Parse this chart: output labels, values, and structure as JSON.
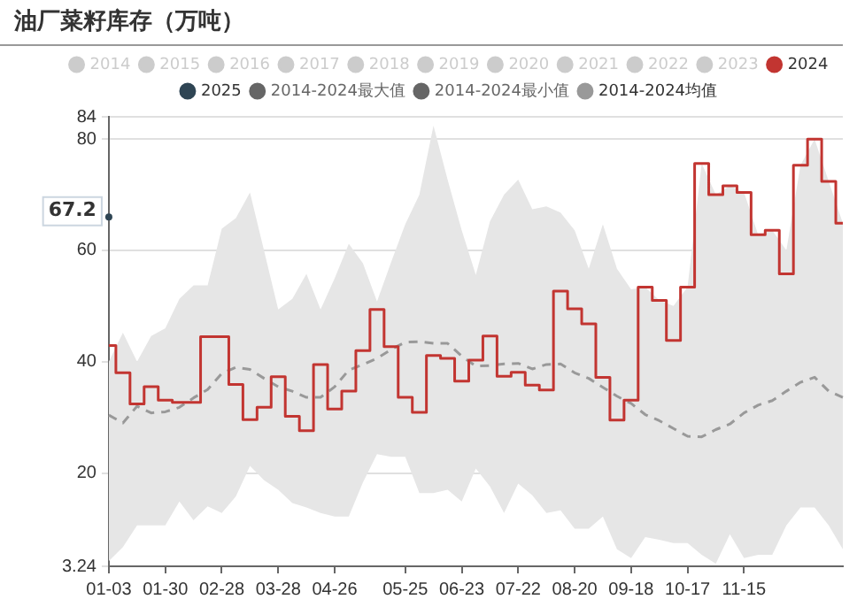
{
  "chart_data": {
    "type": "step",
    "title": "油厂菜籽库存（万吨）",
    "categories": [
      "01-03",
      null,
      null,
      null,
      "01-30",
      null,
      null,
      null,
      "02-28",
      null,
      null,
      null,
      "03-28",
      null,
      null,
      null,
      "04-26",
      null,
      null,
      null,
      null,
      "05-25",
      null,
      null,
      null,
      "06-23",
      null,
      null,
      null,
      "07-22",
      null,
      null,
      null,
      "08-20",
      null,
      null,
      null,
      "09-18",
      null,
      null,
      null,
      "10-17",
      null,
      null,
      null,
      "11-15",
      null,
      null,
      null,
      null,
      null,
      null,
      null
    ],
    "series": [
      {
        "name": "2014",
        "color": "#cccccc",
        "values": [
          null,
          null,
          null,
          null,
          null,
          null,
          null,
          null,
          null,
          null,
          null,
          null,
          null,
          null,
          null,
          null,
          null,
          null,
          null,
          null,
          null,
          null,
          null,
          null,
          null,
          null,
          null,
          null,
          null,
          null,
          null,
          null,
          null,
          null,
          null,
          null,
          null,
          null,
          null,
          null,
          null,
          null,
          null,
          null,
          null,
          null,
          null,
          null,
          null,
          null,
          null,
          null,
          null
        ]
      },
      {
        "name": "2015",
        "color": "#cccccc",
        "values": [
          null,
          null,
          null,
          null,
          null,
          null,
          null,
          null,
          null,
          null,
          null,
          null,
          null,
          null,
          null,
          null,
          null,
          null,
          null,
          null,
          null,
          null,
          null,
          null,
          null,
          null,
          null,
          null,
          null,
          null,
          null,
          null,
          null,
          null,
          null,
          null,
          null,
          null,
          null,
          null,
          null,
          null,
          null,
          null,
          null,
          null,
          null,
          null,
          null,
          null,
          null,
          null,
          null
        ]
      },
      {
        "name": "2016",
        "color": "#cccccc",
        "values": [
          null,
          null,
          null,
          null,
          null,
          null,
          null,
          null,
          null,
          null,
          null,
          null,
          null,
          null,
          null,
          null,
          null,
          null,
          null,
          null,
          null,
          null,
          null,
          null,
          null,
          null,
          null,
          null,
          null,
          null,
          null,
          null,
          null,
          null,
          null,
          null,
          null,
          null,
          null,
          null,
          null,
          null,
          null,
          null,
          null,
          null,
          null,
          null,
          null,
          null,
          null,
          null,
          null
        ]
      },
      {
        "name": "2017",
        "color": "#cccccc",
        "values": [
          null,
          null,
          null,
          null,
          null,
          null,
          null,
          null,
          null,
          null,
          null,
          null,
          null,
          null,
          null,
          null,
          null,
          null,
          null,
          null,
          null,
          null,
          null,
          null,
          null,
          null,
          null,
          null,
          null,
          null,
          null,
          null,
          null,
          null,
          null,
          null,
          null,
          null,
          null,
          null,
          null,
          null,
          null,
          null,
          null,
          null,
          null,
          null,
          null,
          null,
          null,
          null,
          null
        ]
      },
      {
        "name": "2018",
        "color": "#cccccc",
        "values": [
          null,
          null,
          null,
          null,
          null,
          null,
          null,
          null,
          null,
          null,
          null,
          null,
          null,
          null,
          null,
          null,
          null,
          null,
          null,
          null,
          null,
          null,
          null,
          null,
          null,
          null,
          null,
          null,
          null,
          null,
          null,
          null,
          null,
          null,
          null,
          null,
          null,
          null,
          null,
          null,
          null,
          null,
          null,
          null,
          null,
          null,
          null,
          null,
          null,
          null,
          null,
          null,
          null
        ]
      },
      {
        "name": "2019",
        "color": "#cccccc",
        "values": [
          null,
          null,
          null,
          null,
          null,
          null,
          null,
          null,
          null,
          null,
          null,
          null,
          null,
          null,
          null,
          null,
          null,
          null,
          null,
          null,
          null,
          null,
          null,
          null,
          null,
          null,
          null,
          null,
          null,
          null,
          null,
          null,
          null,
          null,
          null,
          null,
          null,
          null,
          null,
          null,
          null,
          null,
          null,
          null,
          null,
          null,
          null,
          null,
          null,
          null,
          null,
          null,
          null
        ]
      },
      {
        "name": "2020",
        "color": "#cccccc",
        "values": [
          null,
          null,
          null,
          null,
          null,
          null,
          null,
          null,
          null,
          null,
          null,
          null,
          null,
          null,
          null,
          null,
          null,
          null,
          null,
          null,
          null,
          null,
          null,
          null,
          null,
          null,
          null,
          null,
          null,
          null,
          null,
          null,
          null,
          null,
          null,
          null,
          null,
          null,
          null,
          null,
          null,
          null,
          null,
          null,
          null,
          null,
          null,
          null,
          null,
          null,
          null,
          null,
          null
        ]
      },
      {
        "name": "2021",
        "color": "#cccccc",
        "values": [
          null,
          null,
          null,
          null,
          null,
          null,
          null,
          null,
          null,
          null,
          null,
          null,
          null,
          null,
          null,
          null,
          null,
          null,
          null,
          null,
          null,
          null,
          null,
          null,
          null,
          null,
          null,
          null,
          null,
          null,
          null,
          null,
          null,
          null,
          null,
          null,
          null,
          null,
          null,
          null,
          null,
          null,
          null,
          null,
          null,
          null,
          null,
          null,
          null,
          null,
          null,
          null,
          null
        ]
      },
      {
        "name": "2022",
        "color": "#cccccc",
        "values": [
          null,
          null,
          null,
          null,
          null,
          null,
          null,
          null,
          null,
          null,
          null,
          null,
          null,
          null,
          null,
          null,
          null,
          null,
          null,
          null,
          null,
          null,
          null,
          null,
          null,
          null,
          null,
          null,
          null,
          null,
          null,
          null,
          null,
          null,
          null,
          null,
          null,
          null,
          null,
          null,
          null,
          null,
          null,
          null,
          null,
          null,
          null,
          null,
          null,
          null,
          null,
          null,
          null
        ]
      },
      {
        "name": "2023",
        "color": "#cccccc",
        "values": [
          null,
          null,
          null,
          null,
          null,
          null,
          null,
          null,
          null,
          null,
          null,
          null,
          null,
          null,
          null,
          null,
          null,
          null,
          null,
          null,
          null,
          null,
          null,
          null,
          null,
          null,
          null,
          null,
          null,
          null,
          null,
          null,
          null,
          null,
          null,
          null,
          null,
          null,
          null,
          null,
          null,
          null,
          null,
          null,
          null,
          null,
          null,
          null,
          null,
          null,
          null,
          null,
          null
        ]
      },
      {
        "name": "2024",
        "color": "#c23531",
        "values": [
          42.9,
          38,
          32.4,
          35.5,
          33.1,
          32.7,
          32.7,
          44.5,
          44.5,
          35.9,
          29.6,
          31.8,
          37.3,
          30.2,
          27.6,
          39.5,
          31.5,
          34.7,
          42,
          49.4,
          42.7,
          33.6,
          30.9,
          41.1,
          40.6,
          36.5,
          40.3,
          44.6,
          37.4,
          38.1,
          35.8,
          34.9,
          52.7,
          49.5,
          46.8,
          37.2,
          29.5,
          33.1,
          53.4,
          51,
          43.8,
          53.4,
          75.6,
          70,
          71.6,
          70.4,
          62.8,
          63.6,
          55.8,
          75.3,
          80,
          72.4,
          64.9
        ]
      },
      {
        "name": "2025",
        "color": "#2f4554",
        "marker": "circle",
        "values": [
          66,
          null,
          null,
          null,
          null,
          null,
          null,
          null,
          null,
          null,
          null,
          null,
          null,
          null,
          null,
          null,
          null,
          null,
          null,
          null,
          null,
          null,
          null,
          null,
          null,
          null,
          null,
          null,
          null,
          null,
          null,
          null,
          null,
          null,
          null,
          null,
          null,
          null,
          null,
          null,
          null,
          null,
          null,
          null,
          null,
          null,
          null,
          null,
          null,
          null,
          null,
          null,
          null
        ]
      },
      {
        "name": "2014-2024最大值",
        "color": "#666666",
        "values": [
          null,
          null,
          null,
          null,
          null,
          null,
          null,
          null,
          null,
          null,
          null,
          null,
          null,
          null,
          null,
          null,
          null,
          null,
          null,
          null,
          null,
          null,
          null,
          null,
          null,
          null,
          null,
          null,
          null,
          null,
          null,
          null,
          null,
          null,
          null,
          null,
          null,
          null,
          null,
          null,
          null,
          null,
          null,
          null,
          null,
          null,
          null,
          null,
          null,
          null,
          null,
          null,
          null
        ]
      },
      {
        "name": "2014-2024最小值",
        "color": "#666666",
        "values": [
          null,
          null,
          null,
          null,
          null,
          null,
          null,
          null,
          null,
          null,
          null,
          null,
          null,
          null,
          null,
          null,
          null,
          null,
          null,
          null,
          null,
          null,
          null,
          null,
          null,
          null,
          null,
          null,
          null,
          null,
          null,
          null,
          null,
          null,
          null,
          null,
          null,
          null,
          null,
          null,
          null,
          null,
          null,
          null,
          null,
          null,
          null,
          null,
          null,
          null,
          null,
          null,
          null
        ]
      },
      {
        "name": "2014-2024均值",
        "type": "line",
        "line_style": "dashed",
        "color": "#999999",
        "values": [
          30.4,
          29,
          32,
          30.8,
          31,
          31.8,
          33.5,
          35,
          37.9,
          39,
          38.6,
          37,
          35.5,
          34.7,
          33.6,
          33.6,
          35.5,
          38.5,
          39.5,
          40.6,
          42.2,
          43.5,
          43.6,
          43.3,
          43.3,
          41,
          39.2,
          39.3,
          39.6,
          39.7,
          38.7,
          39.5,
          39.6,
          38,
          37,
          35.4,
          33.8,
          32.5,
          30.5,
          29.4,
          28,
          26.6,
          26.5,
          27.8,
          28.8,
          30.8,
          32.2,
          33,
          34.7,
          36.3,
          37.2,
          34.7,
          33.6
        ],
        "upper": [
          40,
          45.2,
          40,
          44.6,
          46,
          51.3,
          53.7,
          53.7,
          63.9,
          65.8,
          70.4,
          59.9,
          49.4,
          51.3,
          55.8,
          49.4,
          55,
          61.2,
          57.7,
          50.8,
          57.9,
          64.7,
          70,
          82.4,
          72.7,
          63.6,
          55.6,
          65.2,
          70,
          72.7,
          67.4,
          67.9,
          66.8,
          63.6,
          56.7,
          64.7,
          56.7,
          53,
          53.4,
          51,
          50,
          53.4,
          75.6,
          70,
          71.6,
          70.4,
          62.8,
          63.6,
          60,
          75.3,
          80,
          72.4,
          64.9
        ],
        "lower": [
          4.2,
          6.7,
          10.6,
          10.6,
          10.6,
          14.9,
          11.5,
          14,
          12.8,
          15.8,
          21.3,
          18.7,
          17,
          14.6,
          13.8,
          12.8,
          12.2,
          12.2,
          18.3,
          23.4,
          22.9,
          22.9,
          16.4,
          16.4,
          17,
          14.9,
          20.8,
          17.6,
          12.8,
          18.1,
          16,
          12.8,
          13.3,
          10,
          10,
          12.2,
          6.3,
          4.7,
          8.5,
          8,
          7.4,
          7.4,
          5.3,
          3.7,
          9,
          4.7,
          5.3,
          5.3,
          10.6,
          13.8,
          13.8,
          10.6,
          6.3
        ]
      }
    ],
    "ylim": [
      3.24,
      84
    ],
    "yticks": [
      3.24,
      20,
      40,
      60,
      80,
      84
    ],
    "grid": "y",
    "legend": "top",
    "annotations": [
      "67.2"
    ]
  }
}
